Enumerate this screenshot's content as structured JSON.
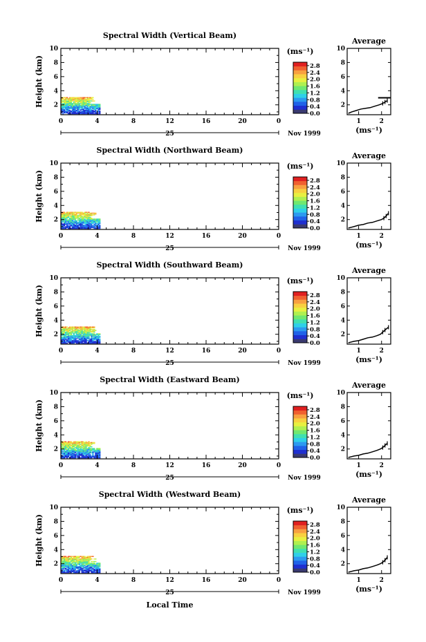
{
  "chart_data": {
    "type": "heatmap",
    "x_label": "Local Time",
    "day_label": "25",
    "date_label": "Nov 1999",
    "x_ticks": [
      "0",
      "4",
      "8",
      "12",
      "16",
      "20",
      "0"
    ],
    "x_range": [
      0,
      24
    ],
    "y_label": "Height (km)",
    "y_ticks": [
      "2",
      "4",
      "6",
      "8",
      "10"
    ],
    "y_range": [
      0.6,
      10
    ],
    "colorbar": {
      "unit": "(ms⁻¹)",
      "ticks": [
        "2.8",
        "2.4",
        "2.0",
        "1.6",
        "1.2",
        "0.8",
        "0.4",
        "0.0"
      ],
      "range": [
        0.0,
        3.0
      ],
      "colors": [
        "#3a3a70",
        "#1f2fd0",
        "#2062e8",
        "#2c9af0",
        "#2fd0e8",
        "#40e0b0",
        "#70e870",
        "#b0f050",
        "#e8f040",
        "#f8d040",
        "#f8a040",
        "#f06030",
        "#e02020"
      ]
    },
    "avg_title": "Average",
    "avg_x_label": "(ms⁻¹)",
    "avg_x_ticks": [
      "1",
      "2"
    ],
    "avg_x_range": [
      0.5,
      2.4
    ],
    "panels": [
      {
        "title": "Spectral Width (Vertical Beam)",
        "data_extent": {
          "time": [
            0.0,
            4.2
          ],
          "height": [
            0.7,
            3.1
          ]
        },
        "average": {
          "width": [
            0.55,
            0.7,
            0.9,
            1.1,
            1.3,
            1.5,
            1.7,
            1.9,
            2.05,
            2.15,
            2.25
          ],
          "height": [
            0.8,
            1.0,
            1.2,
            1.4,
            1.5,
            1.6,
            1.8,
            2.0,
            2.2,
            2.4,
            2.6
          ],
          "segment": {
            "width": [
              1.85,
              2.4
            ],
            "height": 3.0
          }
        }
      },
      {
        "title": "Spectral Width (Northward Beam)",
        "data_extent": {
          "time": [
            0.0,
            4.2
          ],
          "height": [
            0.7,
            3.0
          ]
        },
        "average": {
          "width": [
            0.55,
            0.8,
            1.0,
            1.2,
            1.4,
            1.6,
            1.8,
            2.0,
            2.1,
            2.2,
            2.3
          ],
          "height": [
            0.8,
            1.0,
            1.2,
            1.3,
            1.5,
            1.6,
            1.8,
            2.0,
            2.2,
            2.5,
            2.9
          ]
        }
      },
      {
        "title": "Spectral Width (Southward Beam)",
        "data_extent": {
          "time": [
            0.0,
            4.2
          ],
          "height": [
            0.7,
            3.0
          ]
        },
        "average": {
          "width": [
            0.55,
            0.8,
            1.0,
            1.2,
            1.4,
            1.6,
            1.8,
            1.95,
            2.05,
            2.15,
            2.3
          ],
          "height": [
            0.8,
            1.0,
            1.1,
            1.3,
            1.5,
            1.6,
            1.8,
            2.0,
            2.3,
            2.6,
            3.0
          ]
        }
      },
      {
        "title": "Spectral Width (Eastward Beam)",
        "data_extent": {
          "time": [
            0.0,
            4.2
          ],
          "height": [
            0.7,
            3.0
          ]
        },
        "average": {
          "width": [
            0.55,
            0.8,
            1.0,
            1.2,
            1.4,
            1.6,
            1.8,
            1.95,
            2.05,
            2.15,
            2.25
          ],
          "height": [
            0.8,
            1.0,
            1.1,
            1.3,
            1.4,
            1.6,
            1.8,
            2.0,
            2.2,
            2.5,
            2.8
          ]
        }
      },
      {
        "title": "Spectral Width (Westward Beam)",
        "data_extent": {
          "time": [
            0.0,
            4.2
          ],
          "height": [
            0.7,
            3.0
          ]
        },
        "average": {
          "width": [
            0.55,
            0.8,
            1.0,
            1.2,
            1.4,
            1.6,
            1.8,
            1.95,
            2.05,
            2.15,
            2.25
          ],
          "height": [
            0.8,
            1.0,
            1.1,
            1.3,
            1.4,
            1.6,
            1.8,
            2.0,
            2.2,
            2.5,
            2.9
          ]
        }
      }
    ]
  }
}
